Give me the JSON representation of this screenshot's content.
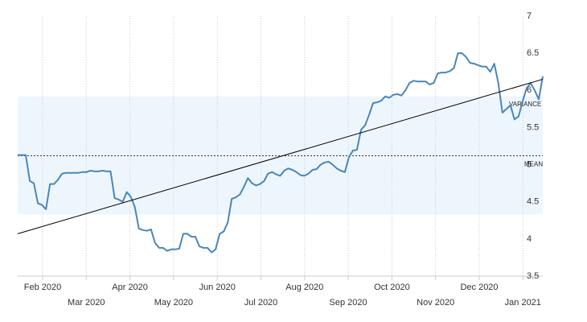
{
  "chart_data": {
    "type": "line",
    "xticks": [
      "Feb 2020",
      "Mar 2020",
      "Apr 2020",
      "May 2020",
      "Jun 2020",
      "Jul 2020",
      "Aug 2020",
      "Sep 2020",
      "Oct 2020",
      "Nov 2020",
      "Dec 2020",
      "Jan 2021"
    ],
    "series": [
      {
        "color": "#4a86b8",
        "values": [
          5.13,
          5.13,
          5.13,
          4.78,
          4.75,
          4.48,
          4.46,
          4.4,
          4.74,
          4.74,
          4.8,
          4.88,
          4.89,
          4.89,
          4.89,
          4.89,
          4.9,
          4.9,
          4.92,
          4.91,
          4.91,
          4.92,
          4.91,
          4.91,
          4.55,
          4.53,
          4.5,
          4.63,
          4.57,
          4.43,
          4.14,
          4.12,
          4.11,
          4.13,
          3.95,
          3.88,
          3.88,
          3.84,
          3.86,
          3.86,
          3.87,
          4.07,
          4.07,
          4.03,
          4.03,
          3.9,
          3.88,
          3.88,
          3.82,
          3.86,
          4.07,
          4.1,
          4.22,
          4.54,
          4.56,
          4.6,
          4.7,
          4.82,
          4.75,
          4.72,
          4.74,
          4.78,
          4.88,
          4.9,
          4.87,
          4.85,
          4.92,
          4.95,
          4.93,
          4.9,
          4.86,
          4.85,
          4.88,
          4.93,
          4.94,
          5.0,
          5.03,
          5.04,
          5.0,
          4.95,
          4.92,
          4.9,
          5.1,
          5.19,
          5.2,
          5.47,
          5.53,
          5.67,
          5.83,
          5.84,
          5.86,
          5.92,
          5.9,
          5.94,
          5.95,
          5.93,
          6.0,
          6.1,
          6.13,
          6.12,
          6.12,
          6.12,
          6.08,
          6.1,
          6.23,
          6.24,
          6.24,
          6.26,
          6.3,
          6.5,
          6.5,
          6.45,
          6.37,
          6.36,
          6.34,
          6.32,
          6.32,
          6.25,
          6.36,
          6.1,
          5.7,
          5.75,
          5.8,
          5.61,
          5.65,
          5.85,
          6.03,
          6.1,
          6.0,
          5.88,
          6.19
        ]
      }
    ],
    "trend": {
      "color": "#000000",
      "values": [
        4.07,
        6.15
      ]
    },
    "mean": {
      "label": "MEAN",
      "value": 5.12
    },
    "variance": {
      "label": "VARIANCE",
      "values": [
        4.33,
        5.92
      ],
      "color": "#eef6fd"
    },
    "ylim": [
      3.5,
      7
    ],
    "yticks": [
      3.5,
      4,
      4.5,
      5,
      5.5,
      6,
      6.5,
      7
    ],
    "grid": true
  }
}
